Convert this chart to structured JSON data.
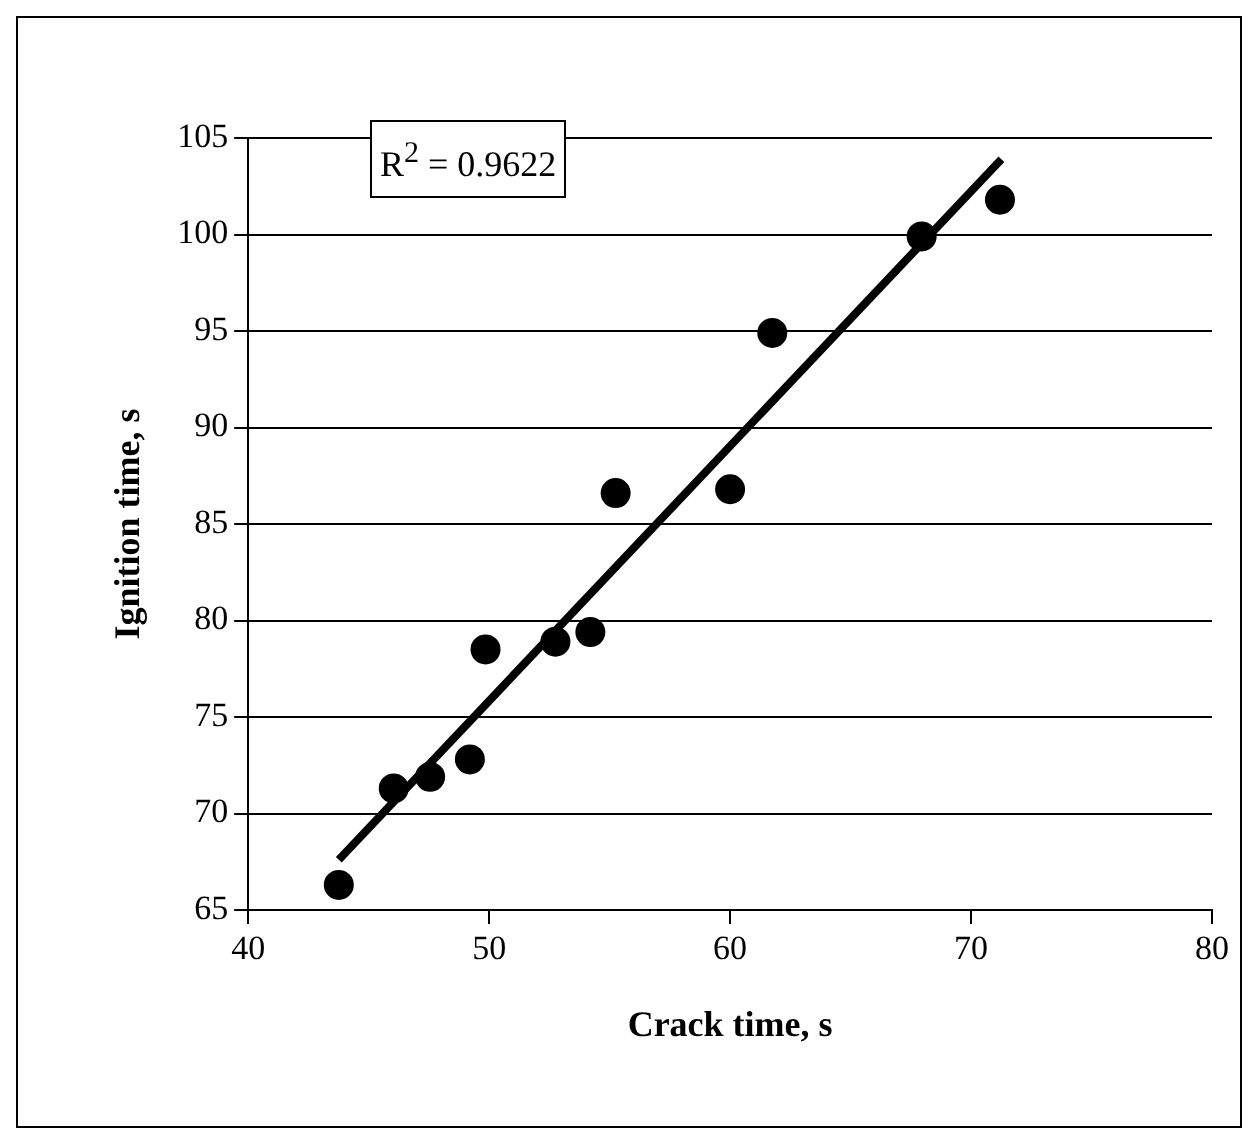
{
  "chart_data": {
    "type": "scatter",
    "xlabel": "Crack time, s",
    "ylabel": "Ignition time, s",
    "xlim": [
      40,
      80
    ],
    "xticks": [
      40,
      50,
      60,
      70,
      80
    ],
    "ylim": [
      65,
      105
    ],
    "yticks": [
      65,
      70,
      75,
      80,
      85,
      90,
      95,
      100,
      105
    ],
    "grid": "y",
    "legend": false,
    "annotations": [
      "R$^{2}$ = 0.9622"
    ],
    "series": [
      {
        "marker": "circle",
        "color": "#000000",
        "x": [
          43.76,
          46.04,
          47.55,
          49.2,
          49.85,
          52.75,
          54.2,
          55.25,
          60.0,
          61.75,
          67.95,
          71.2
        ],
        "values": [
          66.3,
          71.3,
          71.9,
          72.8,
          78.5,
          78.9,
          79.4,
          86.6,
          86.8,
          94.9,
          99.9,
          101.8
        ]
      },
      {
        "type": "line",
        "marker": "none",
        "color": "#000000",
        "x": [
          43.76,
          71.26
        ],
        "values": [
          67.6,
          103.9
        ]
      }
    ]
  }
}
